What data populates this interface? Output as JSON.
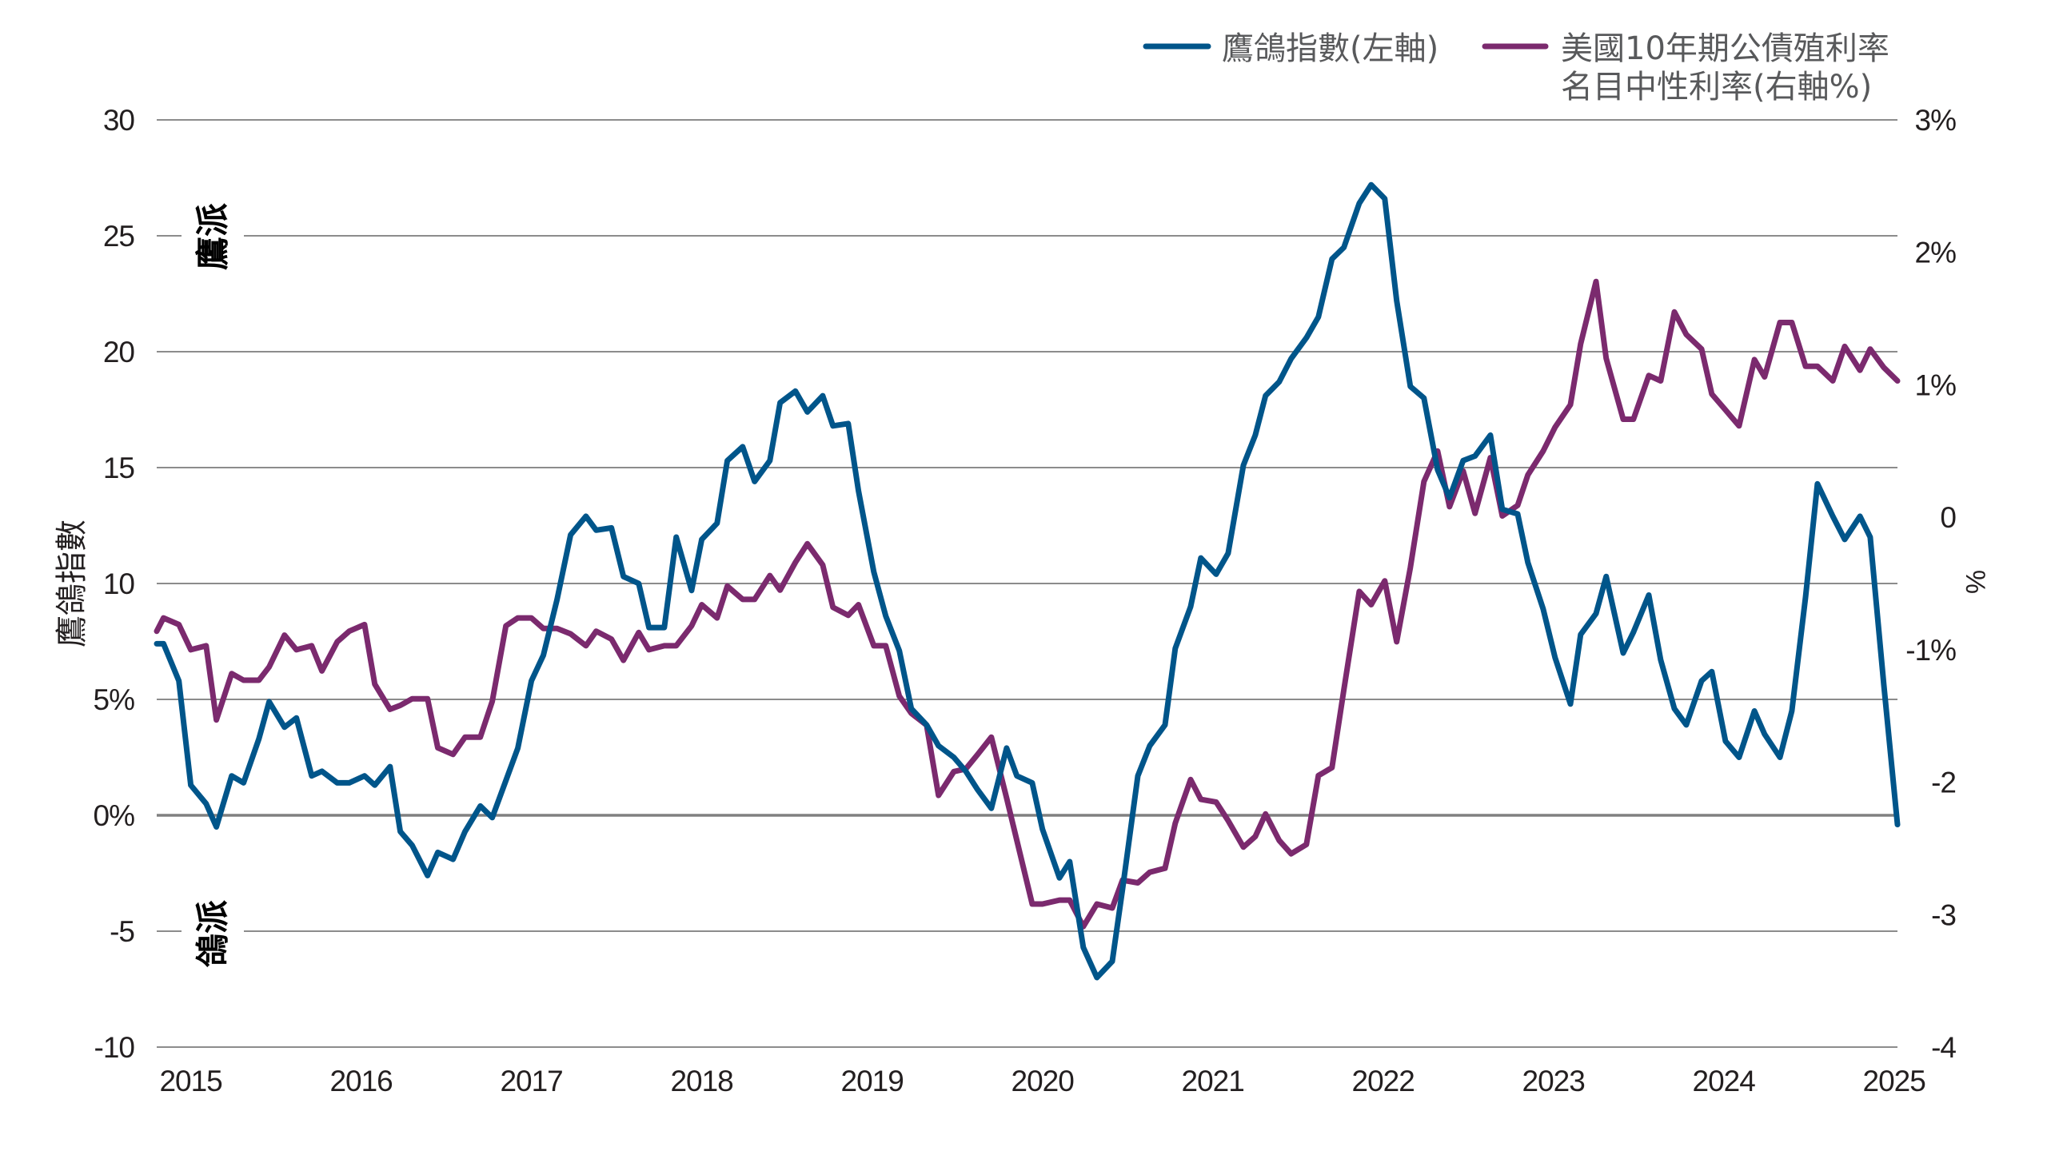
{
  "chart_data": {
    "type": "line",
    "legend_placement": "top-right",
    "grid": true,
    "xlim": [
      2014.8,
      2025.02
    ],
    "x_ticks": [
      2015,
      2016,
      2017,
      2018,
      2019,
      2020,
      2021,
      2022,
      2023,
      2024,
      2025
    ],
    "x_tick_labels": [
      "2015",
      "2016",
      "2017",
      "2018",
      "2019",
      "2020",
      "2021",
      "2022",
      "2023",
      "2024",
      "2025"
    ],
    "y_left": {
      "label": "鷹鴿指數",
      "ylim": [
        -10,
        30
      ],
      "ticks": [
        30,
        25,
        20,
        15,
        10,
        5,
        0,
        -5,
        -10
      ],
      "tick_labels": [
        "30",
        "25",
        "20",
        "15",
        "10",
        "5%",
        "0%",
        "-5",
        "-10"
      ]
    },
    "y_right": {
      "label": "%",
      "ylim": [
        -4,
        3
      ],
      "ticks": [
        3,
        2,
        1,
        0,
        -1,
        -2,
        -3,
        -4
      ],
      "tick_labels": [
        "3%",
        "2%",
        "1%",
        "0",
        "-1%",
        "-2",
        "-3",
        "-4"
      ]
    },
    "annotations": [
      "鷹派",
      "鴿派"
    ],
    "x": [
      2014.8,
      2014.84,
      2014.93,
      2015.0,
      2015.09,
      2015.15,
      2015.24,
      2015.31,
      2015.4,
      2015.46,
      2015.55,
      2015.62,
      2015.71,
      2015.77,
      2015.86,
      2015.93,
      2016.02,
      2016.08,
      2016.17,
      2016.23,
      2016.3,
      2016.39,
      2016.45,
      2016.54,
      2016.61,
      2016.7,
      2016.77,
      2016.85,
      2016.92,
      2017.0,
      2017.07,
      2017.15,
      2017.23,
      2017.32,
      2017.38,
      2017.47,
      2017.54,
      2017.63,
      2017.69,
      2017.78,
      2017.85,
      2017.94,
      2018.0,
      2018.09,
      2018.15,
      2018.24,
      2018.31,
      2018.4,
      2018.46,
      2018.55,
      2018.62,
      2018.71,
      2018.77,
      2018.86,
      2018.92,
      2019.01,
      2019.08,
      2019.16,
      2019.23,
      2019.32,
      2019.39,
      2019.48,
      2019.55,
      2019.62,
      2019.7,
      2019.79,
      2019.85,
      2019.94,
      2020.0,
      2020.1,
      2020.16,
      2020.24,
      2020.32,
      2020.41,
      2020.47,
      2020.56,
      2020.63,
      2020.72,
      2020.78,
      2020.87,
      2020.93,
      2021.02,
      2021.09,
      2021.18,
      2021.25,
      2021.31,
      2021.39,
      2021.46,
      2021.55,
      2021.62,
      2021.7,
      2021.77,
      2021.86,
      2021.93,
      2022.01,
      2022.08,
      2022.16,
      2022.24,
      2022.32,
      2022.39,
      2022.47,
      2022.54,
      2022.63,
      2022.7,
      2022.79,
      2022.85,
      2022.94,
      2023.01,
      2023.1,
      2023.16,
      2023.25,
      2023.31,
      2023.41,
      2023.47,
      2023.56,
      2023.63,
      2023.71,
      2023.78,
      2023.87,
      2023.93,
      2024.01,
      2024.09,
      2024.18,
      2024.24,
      2024.33,
      2024.4,
      2024.48,
      2024.55,
      2024.64,
      2024.71,
      2024.8,
      2024.86,
      2024.94,
      2025.02
    ],
    "series": [
      {
        "name": "鷹鴿指數(左軸)",
        "axis": "left",
        "color": "#00558a",
        "values": [
          7.4,
          7.4,
          5.8,
          1.3,
          0.5,
          -0.5,
          1.7,
          1.4,
          3.3,
          4.9,
          3.8,
          4.2,
          1.7,
          1.9,
          1.4,
          1.4,
          1.7,
          1.3,
          2.1,
          -0.7,
          -1.3,
          -2.6,
          -1.6,
          -1.9,
          -0.7,
          0.4,
          -0.1,
          1.5,
          2.9,
          5.8,
          6.9,
          9.3,
          12.1,
          12.9,
          12.3,
          12.4,
          10.3,
          10.0,
          8.1,
          8.1,
          12.0,
          9.7,
          11.9,
          12.6,
          15.3,
          15.9,
          14.4,
          15.3,
          17.8,
          18.3,
          17.4,
          18.1,
          16.8,
          16.9,
          14.0,
          10.5,
          8.6,
          7.1,
          4.6,
          3.9,
          3.0,
          2.5,
          1.9,
          1.1,
          0.3,
          2.9,
          1.7,
          1.4,
          -0.6,
          -2.7,
          -2.0,
          -5.7,
          -7.0,
          -6.3,
          -3.2,
          1.7,
          3.0,
          3.9,
          7.2,
          9.0,
          11.1,
          10.4,
          11.3,
          15.1,
          16.4,
          18.1,
          18.7,
          19.7,
          20.6,
          21.5,
          24.0,
          24.5,
          26.4,
          27.2,
          26.6,
          22.2,
          18.5,
          18.0,
          14.9,
          13.7,
          15.3,
          15.5,
          16.4,
          13.2,
          13.0,
          10.9,
          8.9,
          6.8,
          4.8,
          7.8,
          8.7,
          10.3,
          7.0,
          7.9,
          9.5,
          6.7,
          4.6,
          3.9,
          5.8,
          6.2,
          3.2,
          2.5,
          4.5,
          3.5,
          2.5,
          4.5,
          9.4,
          14.3,
          12.9,
          11.9,
          12.9,
          12.0,
          5.6,
          -0.4
        ]
      },
      {
        "name_lines": [
          "美國10年期公債殖利率",
          "名目中性利率(右軸%)"
        ],
        "axis": "right",
        "color": "#7b2a6e",
        "values": [
          -0.86,
          -0.76,
          -0.81,
          -1.0,
          -0.97,
          -1.53,
          -1.18,
          -1.23,
          -1.23,
          -1.13,
          -0.89,
          -1.0,
          -0.97,
          -1.16,
          -0.94,
          -0.86,
          -0.81,
          -1.26,
          -1.45,
          -1.42,
          -1.37,
          -1.37,
          -1.74,
          -1.79,
          -1.66,
          -1.66,
          -1.39,
          -0.82,
          -0.76,
          -0.76,
          -0.84,
          -0.84,
          -0.88,
          -0.97,
          -0.86,
          -0.92,
          -1.08,
          -0.87,
          -1.0,
          -0.97,
          -0.97,
          -0.82,
          -0.66,
          -0.76,
          -0.52,
          -0.62,
          -0.62,
          -0.44,
          -0.55,
          -0.34,
          -0.2,
          -0.36,
          -0.68,
          -0.74,
          -0.66,
          -0.97,
          -0.97,
          -1.35,
          -1.48,
          -1.57,
          -2.1,
          -1.92,
          -1.9,
          -1.79,
          -1.66,
          -2.12,
          -2.44,
          -2.92,
          -2.92,
          -2.89,
          -2.89,
          -3.09,
          -2.92,
          -2.95,
          -2.74,
          -2.76,
          -2.68,
          -2.65,
          -2.31,
          -1.98,
          -2.13,
          -2.15,
          -2.29,
          -2.49,
          -2.41,
          -2.24,
          -2.44,
          -2.54,
          -2.47,
          -1.95,
          -1.89,
          -1.3,
          -0.56,
          -0.66,
          -0.48,
          -0.94,
          -0.38,
          0.27,
          0.5,
          0.08,
          0.35,
          0.03,
          0.45,
          0.01,
          0.09,
          0.32,
          0.5,
          0.68,
          0.85,
          1.31,
          1.78,
          1.2,
          0.74,
          0.74,
          1.07,
          1.03,
          1.55,
          1.38,
          1.27,
          0.93,
          0.81,
          0.69,
          1.19,
          1.06,
          1.47,
          1.47,
          1.14,
          1.14,
          1.03,
          1.29,
          1.11,
          1.27,
          1.13,
          1.03
        ]
      }
    ]
  }
}
